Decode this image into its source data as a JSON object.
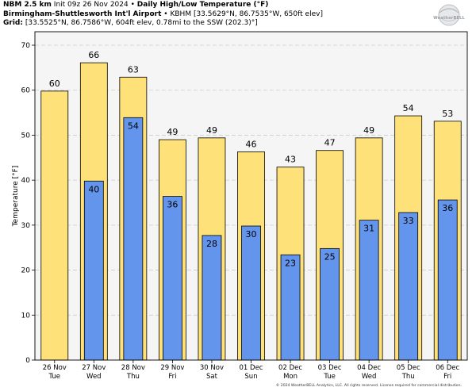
{
  "header": {
    "model_name": "NBM 2.5 km",
    "init_time": "Init 09z 26 Nov 2024",
    "separator": "•",
    "product": "Daily High/Low Temperature (°F)",
    "station_name": "Birmingham-Shuttlesworth Int'l Airport",
    "station_info": "KBHM [33.5629°N, 86.7535°W, 650ft elev]",
    "grid_label": "Grid:",
    "grid_info": "[33.5525°N, 86.7586°W, 604ft elev, 0.78mi to the SSW (202.3)°]"
  },
  "logo": {
    "text": "WeatherBELL"
  },
  "footer": {
    "copyright": "© 2024 WeatherBELL Analytics, LLC. All rights reserved. License required for commercial distribution."
  },
  "colors": {
    "high_bar": "#ffe17a",
    "low_bar": "#6495ed",
    "plot_background": "#f5f5f5",
    "grid": "#cccccc"
  },
  "chart_data": {
    "type": "bar",
    "ylabel": "Temperature [°F]",
    "ylim": [
      0,
      73
    ],
    "yticks": [
      0,
      10,
      20,
      30,
      40,
      50,
      60,
      70
    ],
    "grid": true,
    "categories": [
      {
        "date": "26 Nov",
        "day": "Tue"
      },
      {
        "date": "27 Nov",
        "day": "Wed"
      },
      {
        "date": "28 Nov",
        "day": "Thu"
      },
      {
        "date": "29 Nov",
        "day": "Fri"
      },
      {
        "date": "30 Nov",
        "day": "Sat"
      },
      {
        "date": "01 Dec",
        "day": "Sun"
      },
      {
        "date": "02 Dec",
        "day": "Mon"
      },
      {
        "date": "03 Dec",
        "day": "Tue"
      },
      {
        "date": "04 Dec",
        "day": "Wed"
      },
      {
        "date": "05 Dec",
        "day": "Thu"
      },
      {
        "date": "06 Dec",
        "day": "Fri"
      }
    ],
    "series": [
      {
        "key": "high",
        "values": [
          59.8,
          66.1,
          62.9,
          49.0,
          49.4,
          46.3,
          42.9,
          46.6,
          49.4,
          54.3,
          53.1
        ],
        "labels": [
          "60",
          "66",
          "63",
          "49",
          "49",
          "46",
          "43",
          "47",
          "49",
          "54",
          "53"
        ]
      },
      {
        "key": "low",
        "values": [
          null,
          39.8,
          53.9,
          36.4,
          27.7,
          29.8,
          23.4,
          24.8,
          31.1,
          32.8,
          35.6
        ],
        "labels": [
          "",
          "40",
          "54",
          "36",
          "28",
          "30",
          "23",
          "25",
          "31",
          "33",
          "36"
        ]
      }
    ]
  }
}
